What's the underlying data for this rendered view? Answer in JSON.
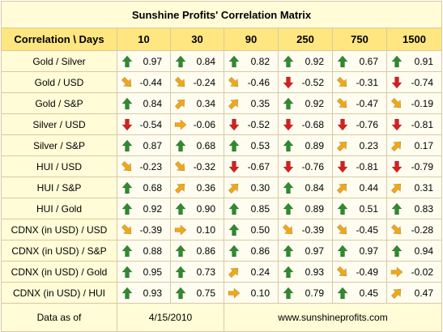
{
  "title": "Sunshine Profits' Correlation Matrix",
  "header_label": "Correlation \\ Days",
  "columns": [
    "10",
    "30",
    "90",
    "250",
    "750",
    "1500"
  ],
  "rows": [
    {
      "label": "Gold / Silver",
      "cells": [
        {
          "v": "0.97",
          "arrow": "up"
        },
        {
          "v": "0.84",
          "arrow": "up"
        },
        {
          "v": "0.82",
          "arrow": "up"
        },
        {
          "v": "0.92",
          "arrow": "up"
        },
        {
          "v": "0.67",
          "arrow": "up"
        },
        {
          "v": "0.91",
          "arrow": "up"
        }
      ]
    },
    {
      "label": "Gold / USD",
      "cells": [
        {
          "v": "-0.44",
          "arrow": "downright"
        },
        {
          "v": "-0.24",
          "arrow": "downright"
        },
        {
          "v": "-0.46",
          "arrow": "downright"
        },
        {
          "v": "-0.52",
          "arrow": "down"
        },
        {
          "v": "-0.31",
          "arrow": "downright"
        },
        {
          "v": "-0.74",
          "arrow": "down"
        }
      ]
    },
    {
      "label": "Gold / S&P",
      "cells": [
        {
          "v": "0.84",
          "arrow": "up"
        },
        {
          "v": "0.34",
          "arrow": "upright"
        },
        {
          "v": "0.35",
          "arrow": "upright"
        },
        {
          "v": "0.92",
          "arrow": "up"
        },
        {
          "v": "-0.47",
          "arrow": "downright"
        },
        {
          "v": "-0.19",
          "arrow": "downright"
        }
      ]
    },
    {
      "label": "Silver / USD",
      "cells": [
        {
          "v": "-0.54",
          "arrow": "down"
        },
        {
          "v": "-0.06",
          "arrow": "right"
        },
        {
          "v": "-0.52",
          "arrow": "down"
        },
        {
          "v": "-0.68",
          "arrow": "down"
        },
        {
          "v": "-0.76",
          "arrow": "down"
        },
        {
          "v": "-0.81",
          "arrow": "down"
        }
      ]
    },
    {
      "label": "Silver / S&P",
      "cells": [
        {
          "v": "0.87",
          "arrow": "up"
        },
        {
          "v": "0.68",
          "arrow": "up"
        },
        {
          "v": "0.53",
          "arrow": "up"
        },
        {
          "v": "0.89",
          "arrow": "up"
        },
        {
          "v": "0.23",
          "arrow": "upright"
        },
        {
          "v": "0.17",
          "arrow": "upright"
        }
      ]
    },
    {
      "label": "HUI / USD",
      "cells": [
        {
          "v": "-0.23",
          "arrow": "downright"
        },
        {
          "v": "-0.32",
          "arrow": "downright"
        },
        {
          "v": "-0.67",
          "arrow": "down"
        },
        {
          "v": "-0.76",
          "arrow": "down"
        },
        {
          "v": "-0.81",
          "arrow": "down"
        },
        {
          "v": "-0.79",
          "arrow": "down"
        }
      ]
    },
    {
      "label": "HUI / S&P",
      "cells": [
        {
          "v": "0.68",
          "arrow": "up"
        },
        {
          "v": "0.36",
          "arrow": "upright"
        },
        {
          "v": "0.30",
          "arrow": "upright"
        },
        {
          "v": "0.84",
          "arrow": "up"
        },
        {
          "v": "0.44",
          "arrow": "upright"
        },
        {
          "v": "0.31",
          "arrow": "upright"
        }
      ]
    },
    {
      "label": "HUI / Gold",
      "cells": [
        {
          "v": "0.92",
          "arrow": "up"
        },
        {
          "v": "0.90",
          "arrow": "up"
        },
        {
          "v": "0.85",
          "arrow": "up"
        },
        {
          "v": "0.89",
          "arrow": "up"
        },
        {
          "v": "0.51",
          "arrow": "up"
        },
        {
          "v": "0.83",
          "arrow": "up"
        }
      ]
    },
    {
      "label": "CDNX (in USD) / USD",
      "cells": [
        {
          "v": "-0.39",
          "arrow": "downright"
        },
        {
          "v": "0.10",
          "arrow": "right"
        },
        {
          "v": "0.50",
          "arrow": "up"
        },
        {
          "v": "-0.39",
          "arrow": "downright"
        },
        {
          "v": "-0.45",
          "arrow": "downright"
        },
        {
          "v": "-0.28",
          "arrow": "downright"
        }
      ]
    },
    {
      "label": "CDNX (in USD) / S&P",
      "cells": [
        {
          "v": "0.88",
          "arrow": "up"
        },
        {
          "v": "0.86",
          "arrow": "up"
        },
        {
          "v": "0.86",
          "arrow": "up"
        },
        {
          "v": "0.97",
          "arrow": "up"
        },
        {
          "v": "0.97",
          "arrow": "up"
        },
        {
          "v": "0.94",
          "arrow": "up"
        }
      ]
    },
    {
      "label": "CDNX (in USD) / Gold",
      "cells": [
        {
          "v": "0.95",
          "arrow": "up"
        },
        {
          "v": "0.73",
          "arrow": "up"
        },
        {
          "v": "0.24",
          "arrow": "upright"
        },
        {
          "v": "0.93",
          "arrow": "up"
        },
        {
          "v": "-0.49",
          "arrow": "downright"
        },
        {
          "v": "-0.02",
          "arrow": "right"
        }
      ]
    },
    {
      "label": "CDNX (in USD) / HUI",
      "cells": [
        {
          "v": "0.93",
          "arrow": "up"
        },
        {
          "v": "0.75",
          "arrow": "up"
        },
        {
          "v": "0.10",
          "arrow": "right"
        },
        {
          "v": "0.79",
          "arrow": "up"
        },
        {
          "v": "0.45",
          "arrow": "up"
        },
        {
          "v": "0.47",
          "arrow": "upright"
        }
      ]
    }
  ],
  "footer": {
    "label": "Data as of",
    "date": "4/15/2010",
    "site": "www.sunshineprofits.com"
  },
  "colors": {
    "up": "#2e8b2e",
    "down": "#d42020",
    "diag": "#f0a818",
    "header_bg": "#ffe680",
    "label_bg": "#fffcd7",
    "cell_bg": "#fffdf0",
    "border": "#d9c9a3"
  }
}
